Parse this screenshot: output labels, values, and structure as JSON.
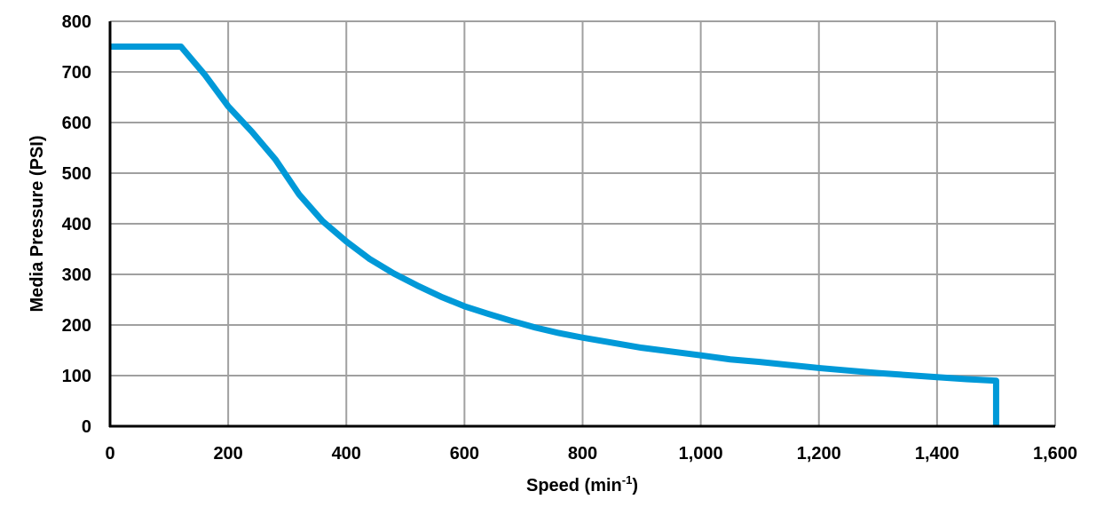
{
  "chart_data": {
    "type": "line",
    "title": "",
    "xlabel": "Speed (min",
    "xlabel_sup": "-1",
    "xlabel_end": ")",
    "ylabel": "Media Pressure (PSI)",
    "xlim": [
      0,
      1600
    ],
    "ylim": [
      0,
      800
    ],
    "grid": true,
    "x_ticks": [
      0,
      200,
      400,
      600,
      800,
      1000,
      1200,
      1400,
      1600
    ],
    "x_tick_labels": [
      "0",
      "200",
      "400",
      "600",
      "800",
      "1,000",
      "1,200",
      "1,400",
      "1,600"
    ],
    "y_ticks": [
      0,
      100,
      200,
      300,
      400,
      500,
      600,
      700,
      800
    ],
    "y_tick_labels": [
      "0",
      "100",
      "200",
      "300",
      "400",
      "500",
      "600",
      "700",
      "800"
    ],
    "series": [
      {
        "color": "#0099d8",
        "x": [
          0,
          120,
          160,
          200,
          240,
          280,
          320,
          360,
          400,
          440,
          480,
          520,
          560,
          600,
          640,
          680,
          720,
          760,
          800,
          900,
          1000,
          1050,
          1100,
          1200,
          1250,
          1300,
          1400,
          1450,
          1500,
          1500
        ],
        "y": [
          750,
          750,
          695,
          632,
          582,
          527,
          458,
          405,
          365,
          330,
          302,
          278,
          256,
          237,
          222,
          208,
          195,
          184,
          175,
          155,
          140,
          132,
          127,
          115,
          110,
          105,
          97,
          93,
          90,
          0
        ]
      }
    ]
  }
}
